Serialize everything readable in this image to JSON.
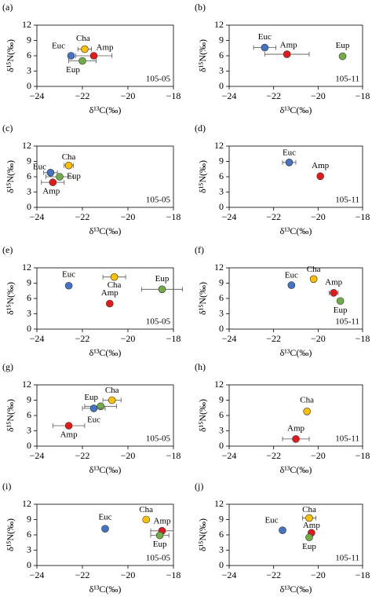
{
  "chart_data": [
    {
      "type": "scatter",
      "panel_label": "(a)",
      "annotation": "105-05",
      "x_label": "δ¹³C(‰)",
      "y_label": "δ¹⁵N(‰)",
      "xlim": [
        -24,
        -18
      ],
      "ylim": [
        0,
        12
      ],
      "xticks": [
        {
          "value": -24,
          "label": "−24"
        },
        {
          "value": -22,
          "label": "−22"
        },
        {
          "value": -20,
          "label": "−20"
        },
        {
          "value": -18,
          "label": "−18"
        }
      ],
      "yticks": [
        0,
        3,
        6,
        9,
        12
      ],
      "series": [
        {
          "name": "Euc",
          "color": "#4472c4",
          "x": [
            -22.5
          ],
          "y": [
            6.0
          ]
        },
        {
          "name": "Cha",
          "color": "#ffc000",
          "x": [
            -21.9
          ],
          "y": [
            7.3
          ],
          "xerr": [
            0.3
          ]
        },
        {
          "name": "Amp",
          "color": "#e31a1c",
          "x": [
            -21.5
          ],
          "y": [
            6.0
          ],
          "xerr": [
            0.8
          ]
        },
        {
          "name": "Eup",
          "color": "#70ad47",
          "x": [
            -22.0
          ],
          "y": [
            5.0
          ],
          "xerr": [
            0.6
          ]
        }
      ]
    },
    {
      "type": "scatter",
      "panel_label": "(b)",
      "annotation": "105-11",
      "x_label": "δ¹³C(‰)",
      "y_label": "δ¹⁵N(‰)",
      "xlim": [
        -24,
        -18
      ],
      "ylim": [
        0,
        12
      ],
      "xticks": [
        {
          "value": -24,
          "label": "−24"
        },
        {
          "value": -22,
          "label": "−22"
        },
        {
          "value": -20,
          "label": "−20"
        },
        {
          "value": -18,
          "label": "−18"
        }
      ],
      "yticks": [
        0,
        3,
        6,
        9,
        12
      ],
      "series": [
        {
          "name": "Euc",
          "color": "#4472c4",
          "x": [
            -22.4
          ],
          "y": [
            7.6
          ],
          "xerr": [
            0.5
          ]
        },
        {
          "name": "Amp",
          "color": "#e31a1c",
          "x": [
            -21.4
          ],
          "y": [
            6.3
          ],
          "xerr": [
            1.0
          ]
        },
        {
          "name": "Eup",
          "color": "#70ad47",
          "x": [
            -18.9
          ],
          "y": [
            5.9
          ]
        }
      ]
    },
    {
      "type": "scatter",
      "panel_label": "(c)",
      "annotation": "105-05",
      "x_label": "δ¹³C(‰)",
      "y_label": "δ¹⁵N(‰)",
      "xlim": [
        -24,
        -18
      ],
      "ylim": [
        0,
        12
      ],
      "xticks": [
        {
          "value": -24,
          "label": "−24"
        },
        {
          "value": -22,
          "label": "−22"
        },
        {
          "value": -20,
          "label": "−20"
        },
        {
          "value": -18,
          "label": "−18"
        }
      ],
      "yticks": [
        0,
        3,
        6,
        9,
        12
      ],
      "series": [
        {
          "name": "Euc",
          "color": "#4472c4",
          "x": [
            -23.4
          ],
          "y": [
            6.8
          ],
          "xerr": [
            0.3
          ]
        },
        {
          "name": "Cha",
          "color": "#ffc000",
          "x": [
            -22.6
          ],
          "y": [
            8.2
          ],
          "xerr": [
            0.2
          ]
        },
        {
          "name": "Eup",
          "color": "#70ad47",
          "x": [
            -23.0
          ],
          "y": [
            6.0
          ],
          "xerr": [
            0.6
          ]
        },
        {
          "name": "Amp",
          "color": "#e31a1c",
          "x": [
            -23.3
          ],
          "y": [
            4.9
          ],
          "xerr": [
            0.5
          ]
        }
      ]
    },
    {
      "type": "scatter",
      "panel_label": "(d)",
      "annotation": "105-11",
      "x_label": "δ¹³C(‰)",
      "y_label": "δ¹⁵N(‰)",
      "xlim": [
        -24,
        -18
      ],
      "ylim": [
        0,
        12
      ],
      "xticks": [
        {
          "value": -24,
          "label": "−24"
        },
        {
          "value": -22,
          "label": "−22"
        },
        {
          "value": -20,
          "label": "−20"
        },
        {
          "value": -18,
          "label": "−18"
        }
      ],
      "yticks": [
        0,
        3,
        6,
        9,
        12
      ],
      "series": [
        {
          "name": "Euc",
          "color": "#4472c4",
          "x": [
            -21.3
          ],
          "y": [
            8.8
          ],
          "xerr": [
            0.3
          ]
        },
        {
          "name": "Amp",
          "color": "#e31a1c",
          "x": [
            -19.9
          ],
          "y": [
            6.1
          ]
        }
      ]
    },
    {
      "type": "scatter",
      "panel_label": "(e)",
      "annotation": "105-05",
      "x_label": "δ¹³C(‰)",
      "y_label": "δ¹⁵N(‰)",
      "xlim": [
        -24,
        -18
      ],
      "ylim": [
        0,
        12
      ],
      "xticks": [
        {
          "value": -24,
          "label": "−24"
        },
        {
          "value": -22,
          "label": "−22"
        },
        {
          "value": -20,
          "label": "−20"
        },
        {
          "value": -18,
          "label": "−18"
        }
      ],
      "yticks": [
        0,
        3,
        6,
        9,
        12
      ],
      "series": [
        {
          "name": "Euc",
          "color": "#4472c4",
          "x": [
            -22.6
          ],
          "y": [
            8.5
          ]
        },
        {
          "name": "Cha",
          "color": "#ffc000",
          "x": [
            -20.6
          ],
          "y": [
            10.2
          ],
          "xerr": [
            0.5
          ]
        },
        {
          "name": "Eup",
          "color": "#70ad47",
          "x": [
            -18.5
          ],
          "y": [
            7.8
          ],
          "xerr": [
            0.9
          ]
        },
        {
          "name": "Amp",
          "color": "#e31a1c",
          "x": [
            -20.8
          ],
          "y": [
            5.0
          ]
        }
      ]
    },
    {
      "type": "scatter",
      "panel_label": "(f)",
      "annotation": "105-11",
      "x_label": "δ¹³C(‰)",
      "y_label": "δ¹⁵N(‰)",
      "xlim": [
        -24,
        -18
      ],
      "ylim": [
        0,
        12
      ],
      "xticks": [
        {
          "value": -24,
          "label": "−24"
        },
        {
          "value": -22,
          "label": "−22"
        },
        {
          "value": -20,
          "label": "−20"
        },
        {
          "value": -18,
          "label": "−18"
        }
      ],
      "yticks": [
        0,
        3,
        6,
        9,
        12
      ],
      "series": [
        {
          "name": "Euc",
          "color": "#4472c4",
          "x": [
            -21.2
          ],
          "y": [
            8.6
          ]
        },
        {
          "name": "Cha",
          "color": "#ffc000",
          "x": [
            -20.2
          ],
          "y": [
            9.8
          ]
        },
        {
          "name": "Amp",
          "color": "#e31a1c",
          "x": [
            -19.3
          ],
          "y": [
            7.1
          ],
          "xerr": [
            0.2
          ]
        },
        {
          "name": "Eup",
          "color": "#70ad47",
          "x": [
            -19.0
          ],
          "y": [
            5.5
          ]
        }
      ]
    },
    {
      "type": "scatter",
      "panel_label": "(g)",
      "annotation": "105-05",
      "x_label": "δ¹³C(‰)",
      "y_label": "δ¹⁵N(‰)",
      "xlim": [
        -24,
        -18
      ],
      "ylim": [
        0,
        12
      ],
      "xticks": [
        {
          "value": -24,
          "label": "−24"
        },
        {
          "value": -22,
          "label": "−22"
        },
        {
          "value": -20,
          "label": "−20"
        },
        {
          "value": -18,
          "label": "−18"
        }
      ],
      "yticks": [
        0,
        3,
        6,
        9,
        12
      ],
      "series": [
        {
          "name": "Cha",
          "color": "#ffc000",
          "x": [
            -20.7
          ],
          "y": [
            9.0
          ],
          "xerr": [
            0.4
          ]
        },
        {
          "name": "Eup",
          "color": "#70ad47",
          "x": [
            -21.2
          ],
          "y": [
            7.8
          ],
          "xerr": [
            0.7
          ]
        },
        {
          "name": "Euc",
          "color": "#4472c4",
          "x": [
            -21.5
          ],
          "y": [
            7.4
          ],
          "xerr": [
            0.5
          ]
        },
        {
          "name": "Amp",
          "color": "#e31a1c",
          "x": [
            -22.6
          ],
          "y": [
            4.0
          ],
          "xerr": [
            0.7
          ]
        }
      ]
    },
    {
      "type": "scatter",
      "panel_label": "(h)",
      "annotation": "105-11",
      "x_label": "δ¹³C(‰)",
      "y_label": "δ¹⁵N(‰)",
      "xlim": [
        -24,
        -18
      ],
      "ylim": [
        0,
        12
      ],
      "xticks": [
        {
          "value": -24,
          "label": "−24"
        },
        {
          "value": -22,
          "label": "−22"
        },
        {
          "value": -20,
          "label": "−20"
        },
        {
          "value": -18,
          "label": "−18"
        }
      ],
      "yticks": [
        0,
        3,
        6,
        9,
        12
      ],
      "series": [
        {
          "name": "Cha",
          "color": "#ffc000",
          "x": [
            -20.5
          ],
          "y": [
            6.8
          ]
        },
        {
          "name": "Amp",
          "color": "#e31a1c",
          "x": [
            -21.0
          ],
          "y": [
            1.4
          ],
          "xerr": [
            0.6
          ]
        }
      ]
    },
    {
      "type": "scatter",
      "panel_label": "(i)",
      "annotation": "105-05",
      "x_label": "δ¹³C(‰)",
      "y_label": "δ¹⁵N(‰)",
      "xlim": [
        -24,
        -18
      ],
      "ylim": [
        0,
        12
      ],
      "xticks": [
        {
          "value": -24,
          "label": "−24"
        },
        {
          "value": -22,
          "label": "−22"
        },
        {
          "value": -20,
          "label": "−20"
        },
        {
          "value": -18,
          "label": "−18"
        }
      ],
      "yticks": [
        0,
        3,
        6,
        9,
        12
      ],
      "series": [
        {
          "name": "Euc",
          "color": "#4472c4",
          "x": [
            -21.0
          ],
          "y": [
            7.2
          ]
        },
        {
          "name": "Cha",
          "color": "#ffc000",
          "x": [
            -19.2
          ],
          "y": [
            9.0
          ]
        },
        {
          "name": "Amp",
          "color": "#e31a1c",
          "x": [
            -18.5
          ],
          "y": [
            6.8
          ],
          "xerr": [
            0.5
          ]
        },
        {
          "name": "Eup",
          "color": "#70ad47",
          "x": [
            -18.6
          ],
          "y": [
            5.9
          ],
          "xerr": [
            0.4
          ]
        }
      ]
    },
    {
      "type": "scatter",
      "panel_label": "(j)",
      "annotation": "105-11",
      "x_label": "δ¹³C(‰)",
      "y_label": "δ¹⁵N(‰)",
      "xlim": [
        -24,
        -18
      ],
      "ylim": [
        0,
        12
      ],
      "xticks": [
        {
          "value": -24,
          "label": "−24"
        },
        {
          "value": -22,
          "label": "−22"
        },
        {
          "value": -20,
          "label": "−20"
        },
        {
          "value": -18,
          "label": "−18"
        }
      ],
      "yticks": [
        0,
        3,
        6,
        9,
        12
      ],
      "series": [
        {
          "name": "Euc",
          "color": "#4472c4",
          "x": [
            -21.6
          ],
          "y": [
            6.9
          ]
        },
        {
          "name": "Cha",
          "color": "#ffc000",
          "x": [
            -20.4
          ],
          "y": [
            9.3
          ],
          "xerr": [
            0.3
          ]
        },
        {
          "name": "Amp",
          "color": "#e31a1c",
          "x": [
            -20.3
          ],
          "y": [
            6.4
          ]
        },
        {
          "name": "Eup",
          "color": "#70ad47",
          "x": [
            -20.4
          ],
          "y": [
            5.5
          ]
        }
      ]
    }
  ]
}
